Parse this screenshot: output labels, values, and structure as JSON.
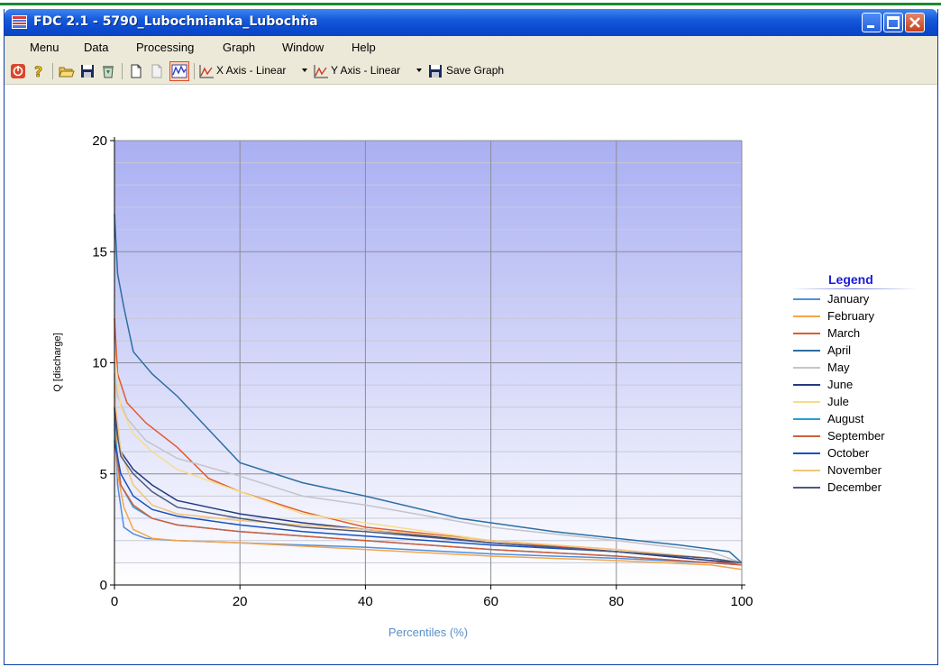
{
  "window": {
    "title": "FDC 2.1 - 5790_Lubochnianka_Lubochňa"
  },
  "menu": [
    "Menu",
    "Data",
    "Processing",
    "Graph",
    "Window",
    "Help"
  ],
  "toolbar": {
    "x_axis_label": "X Axis - Linear",
    "y_axis_label": "Y Axis - Linear",
    "save_graph_label": "Save Graph"
  },
  "chart_data": {
    "type": "line",
    "xlabel": "Percentiles (%)",
    "ylabel": "Q [discharge]",
    "xlim": [
      0,
      100
    ],
    "ylim": [
      0,
      20
    ],
    "x_ticks": [
      "0",
      "20",
      "40",
      "60",
      "80",
      "100"
    ],
    "y_ticks": [
      "0",
      "5",
      "10",
      "15",
      "20"
    ],
    "grid": true,
    "legend_title": "Legend",
    "legend_position": "right",
    "series": [
      {
        "name": "January",
        "color": "#4f90dc",
        "points": [
          [
            0,
            8.0
          ],
          [
            0.5,
            4.5
          ],
          [
            1.5,
            2.6
          ],
          [
            3,
            2.3
          ],
          [
            5,
            2.1
          ],
          [
            10,
            2.0
          ],
          [
            20,
            1.9
          ],
          [
            40,
            1.7
          ],
          [
            60,
            1.4
          ],
          [
            80,
            1.2
          ],
          [
            95,
            1.0
          ],
          [
            100,
            0.9
          ]
        ]
      },
      {
        "name": "February",
        "color": "#f5a54a",
        "points": [
          [
            0,
            9.5
          ],
          [
            0.5,
            5.0
          ],
          [
            1.5,
            3.5
          ],
          [
            3,
            2.5
          ],
          [
            6,
            2.1
          ],
          [
            10,
            2.0
          ],
          [
            20,
            1.9
          ],
          [
            40,
            1.6
          ],
          [
            60,
            1.3
          ],
          [
            80,
            1.1
          ],
          [
            95,
            0.9
          ],
          [
            100,
            0.7
          ]
        ]
      },
      {
        "name": "March",
        "color": "#e05a32",
        "points": [
          [
            0,
            12.0
          ],
          [
            0.5,
            9.5
          ],
          [
            2,
            8.2
          ],
          [
            5,
            7.3
          ],
          [
            10,
            6.2
          ],
          [
            15,
            4.8
          ],
          [
            20,
            4.2
          ],
          [
            30,
            3.3
          ],
          [
            40,
            2.6
          ],
          [
            60,
            2.0
          ],
          [
            80,
            1.5
          ],
          [
            95,
            1.1
          ],
          [
            100,
            0.9
          ]
        ]
      },
      {
        "name": "April",
        "color": "#2d6ea3",
        "points": [
          [
            0,
            16.7
          ],
          [
            0.5,
            14.0
          ],
          [
            1.5,
            12.5
          ],
          [
            3,
            10.5
          ],
          [
            6,
            9.5
          ],
          [
            10,
            8.5
          ],
          [
            15,
            7.0
          ],
          [
            20,
            5.5
          ],
          [
            30,
            4.6
          ],
          [
            40,
            4.0
          ],
          [
            55,
            3.0
          ],
          [
            60,
            2.8
          ],
          [
            70,
            2.4
          ],
          [
            80,
            2.1
          ],
          [
            90,
            1.8
          ],
          [
            98,
            1.5
          ],
          [
            100,
            1.0
          ]
        ]
      },
      {
        "name": "May",
        "color": "#c4c4ca",
        "points": [
          [
            0,
            9.5
          ],
          [
            0.5,
            8.5
          ],
          [
            2,
            7.5
          ],
          [
            5,
            6.5
          ],
          [
            10,
            5.7
          ],
          [
            20,
            4.9
          ],
          [
            30,
            4.0
          ],
          [
            40,
            3.6
          ],
          [
            50,
            3.1
          ],
          [
            60,
            2.6
          ],
          [
            80,
            2.0
          ],
          [
            95,
            1.5
          ],
          [
            100,
            1.0
          ]
        ]
      },
      {
        "name": "June",
        "color": "#243a82",
        "points": [
          [
            0,
            8.0
          ],
          [
            1,
            6.0
          ],
          [
            3,
            5.2
          ],
          [
            6,
            4.5
          ],
          [
            10,
            3.8
          ],
          [
            20,
            3.2
          ],
          [
            30,
            2.8
          ],
          [
            40,
            2.5
          ],
          [
            60,
            1.9
          ],
          [
            80,
            1.5
          ],
          [
            95,
            1.1
          ],
          [
            100,
            1.0
          ]
        ]
      },
      {
        "name": "Jule",
        "color": "#f7dd8a",
        "points": [
          [
            0,
            10.5
          ],
          [
            1,
            8.0
          ],
          [
            3,
            6.8
          ],
          [
            6,
            6.0
          ],
          [
            10,
            5.2
          ],
          [
            20,
            4.2
          ],
          [
            30,
            3.2
          ],
          [
            40,
            2.8
          ],
          [
            60,
            2.0
          ],
          [
            80,
            1.6
          ],
          [
            95,
            1.2
          ],
          [
            100,
            1.0
          ]
        ]
      },
      {
        "name": "August",
        "color": "#2a9ed8",
        "points": [
          [
            0,
            7.0
          ],
          [
            1,
            4.5
          ],
          [
            3,
            3.5
          ],
          [
            6,
            3.0
          ],
          [
            10,
            2.7
          ],
          [
            20,
            2.4
          ],
          [
            30,
            2.2
          ],
          [
            40,
            2.0
          ],
          [
            60,
            1.6
          ],
          [
            80,
            1.3
          ],
          [
            95,
            1.0
          ],
          [
            100,
            0.9
          ]
        ]
      },
      {
        "name": "September",
        "color": "#d0603e",
        "points": [
          [
            0,
            6.5
          ],
          [
            1,
            4.5
          ],
          [
            3,
            3.6
          ],
          [
            6,
            3.0
          ],
          [
            10,
            2.7
          ],
          [
            20,
            2.4
          ],
          [
            40,
            2.0
          ],
          [
            60,
            1.6
          ],
          [
            80,
            1.3
          ],
          [
            95,
            1.0
          ],
          [
            100,
            0.9
          ]
        ]
      },
      {
        "name": "October",
        "color": "#1852c0",
        "points": [
          [
            0,
            6.5
          ],
          [
            1,
            5.0
          ],
          [
            3,
            4.0
          ],
          [
            6,
            3.4
          ],
          [
            10,
            3.1
          ],
          [
            20,
            2.7
          ],
          [
            30,
            2.4
          ],
          [
            40,
            2.2
          ],
          [
            60,
            1.8
          ],
          [
            80,
            1.5
          ],
          [
            95,
            1.2
          ],
          [
            100,
            1.0
          ]
        ]
      },
      {
        "name": "November",
        "color": "#f2c47a",
        "points": [
          [
            0,
            8.5
          ],
          [
            1,
            6.0
          ],
          [
            3,
            4.5
          ],
          [
            6,
            3.6
          ],
          [
            10,
            3.2
          ],
          [
            20,
            2.9
          ],
          [
            40,
            2.5
          ],
          [
            60,
            2.0
          ],
          [
            80,
            1.6
          ],
          [
            95,
            1.2
          ],
          [
            100,
            1.0
          ]
        ]
      },
      {
        "name": "December",
        "color": "#4d5a7e",
        "points": [
          [
            0,
            7.5
          ],
          [
            1,
            5.8
          ],
          [
            3,
            5.0
          ],
          [
            6,
            4.2
          ],
          [
            10,
            3.5
          ],
          [
            20,
            3.0
          ],
          [
            30,
            2.6
          ],
          [
            40,
            2.4
          ],
          [
            60,
            1.9
          ],
          [
            80,
            1.5
          ],
          [
            95,
            1.2
          ],
          [
            100,
            1.0
          ]
        ]
      }
    ]
  }
}
